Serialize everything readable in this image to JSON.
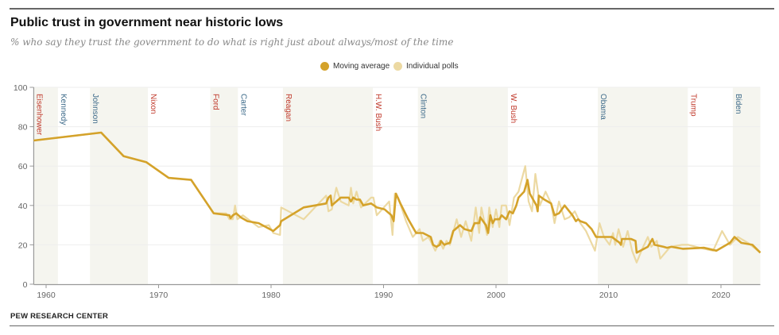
{
  "title": "Public trust in government near historic lows",
  "subtitle": "% who say they trust the government to do what is right just about always/most of the time",
  "source": "PEW RESEARCH CENTER",
  "colors": {
    "moving_average": "#d4a22a",
    "individual_polls": "#ecd9a2",
    "shade": "#f5f5ef",
    "republican": "#c0392b",
    "democrat": "#3e6b8a"
  },
  "chart_data": {
    "type": "line",
    "title": "Public trust in government near historic lows",
    "xlim": [
      1958.9,
      2023.5
    ],
    "ylim": [
      0,
      100
    ],
    "xticks": [
      1960,
      1970,
      1980,
      1990,
      2000,
      2010,
      2020
    ],
    "yticks": [
      0,
      20,
      40,
      60,
      80,
      100
    ],
    "grid": true,
    "legend": {
      "placement": "top-right",
      "entries": [
        "Moving average",
        "Individual polls"
      ]
    },
    "presidents": [
      {
        "name": "Eisenhower",
        "party": "R",
        "start": 1958.9,
        "end": 1961.05,
        "shaded": true
      },
      {
        "name": "Kennedy",
        "party": "D",
        "start": 1961.05,
        "end": 1963.9,
        "shaded": false
      },
      {
        "name": "Johnson",
        "party": "D",
        "start": 1963.9,
        "end": 1969.05,
        "shaded": true
      },
      {
        "name": "Nixon",
        "party": "R",
        "start": 1969.05,
        "end": 1974.6,
        "shaded": false
      },
      {
        "name": "Ford",
        "party": "R",
        "start": 1974.6,
        "end": 1977.05,
        "shaded": true
      },
      {
        "name": "Carter",
        "party": "D",
        "start": 1977.05,
        "end": 1981.05,
        "shaded": false
      },
      {
        "name": "Reagan",
        "party": "R",
        "start": 1981.05,
        "end": 1989.05,
        "shaded": true
      },
      {
        "name": "H.W. Bush",
        "party": "R",
        "start": 1989.05,
        "end": 1993.05,
        "shaded": false
      },
      {
        "name": "Clinton",
        "party": "D",
        "start": 1993.05,
        "end": 2001.05,
        "shaded": true
      },
      {
        "name": "W. Bush",
        "party": "R",
        "start": 2001.05,
        "end": 2009.05,
        "shaded": false
      },
      {
        "name": "Obama",
        "party": "D",
        "start": 2009.05,
        "end": 2017.05,
        "shaded": true
      },
      {
        "name": "Trump",
        "party": "R",
        "start": 2017.05,
        "end": 2021.05,
        "shaded": false
      },
      {
        "name": "Biden",
        "party": "D",
        "start": 2021.05,
        "end": 2023.5,
        "shaded": true
      }
    ],
    "series": [
      {
        "name": "Individual polls",
        "points": [
          [
            1958.9,
            73
          ],
          [
            1964.9,
            77
          ],
          [
            1966.9,
            65
          ],
          [
            1968.9,
            62
          ],
          [
            1970.9,
            54
          ],
          [
            1972.9,
            53
          ],
          [
            1974.9,
            36
          ],
          [
            1976.0,
            36
          ],
          [
            1976.3,
            33
          ],
          [
            1976.6,
            33
          ],
          [
            1976.8,
            40
          ],
          [
            1977.0,
            33
          ],
          [
            1977.5,
            35
          ],
          [
            1978.9,
            29
          ],
          [
            1979.8,
            30
          ],
          [
            1980.2,
            26
          ],
          [
            1980.8,
            25
          ],
          [
            1980.9,
            39
          ],
          [
            1982.9,
            33
          ],
          [
            1984.9,
            45
          ],
          [
            1985.1,
            37
          ],
          [
            1985.4,
            38
          ],
          [
            1985.8,
            49
          ],
          [
            1986.2,
            42
          ],
          [
            1986.9,
            40
          ],
          [
            1987.1,
            49
          ],
          [
            1987.3,
            41
          ],
          [
            1987.6,
            47
          ],
          [
            1988.0,
            39
          ],
          [
            1988.9,
            44
          ],
          [
            1989.1,
            44
          ],
          [
            1989.4,
            35
          ],
          [
            1990.5,
            42
          ],
          [
            1990.8,
            25
          ],
          [
            1991.0,
            46
          ],
          [
            1991.3,
            44
          ],
          [
            1992.0,
            32
          ],
          [
            1992.6,
            24
          ],
          [
            1993.2,
            28
          ],
          [
            1993.5,
            22
          ],
          [
            1994.0,
            24
          ],
          [
            1994.6,
            17
          ],
          [
            1995.0,
            22
          ],
          [
            1995.3,
            18
          ],
          [
            1995.6,
            22
          ],
          [
            1995.9,
            20
          ],
          [
            1996.5,
            33
          ],
          [
            1996.9,
            24
          ],
          [
            1997.3,
            32
          ],
          [
            1997.8,
            22
          ],
          [
            1998.2,
            39
          ],
          [
            1998.5,
            26
          ],
          [
            1998.7,
            39
          ],
          [
            1999.2,
            25
          ],
          [
            1999.4,
            39
          ],
          [
            1999.7,
            29
          ],
          [
            2000.0,
            38
          ],
          [
            2000.3,
            29
          ],
          [
            2000.5,
            40
          ],
          [
            2000.9,
            40
          ],
          [
            2001.2,
            30
          ],
          [
            2001.6,
            44
          ],
          [
            2002.0,
            47
          ],
          [
            2002.6,
            60
          ],
          [
            2002.9,
            42
          ],
          [
            2003.2,
            37
          ],
          [
            2003.5,
            56
          ],
          [
            2003.9,
            40
          ],
          [
            2004.4,
            47
          ],
          [
            2004.9,
            41
          ],
          [
            2005.2,
            31
          ],
          [
            2005.6,
            42
          ],
          [
            2006.1,
            33
          ],
          [
            2006.5,
            34
          ],
          [
            2007.0,
            37
          ],
          [
            2007.5,
            31
          ],
          [
            2008.0,
            27
          ],
          [
            2008.8,
            17
          ],
          [
            2009.2,
            31
          ],
          [
            2009.6,
            24
          ],
          [
            2010.1,
            20
          ],
          [
            2010.4,
            26
          ],
          [
            2010.6,
            20
          ],
          [
            2010.9,
            28
          ],
          [
            2011.3,
            19
          ],
          [
            2011.7,
            27
          ],
          [
            2012.1,
            17
          ],
          [
            2012.5,
            11
          ],
          [
            2013.0,
            18
          ],
          [
            2013.5,
            24
          ],
          [
            2013.8,
            19
          ],
          [
            2014.3,
            22
          ],
          [
            2014.6,
            13
          ],
          [
            2015.5,
            19
          ],
          [
            2016.5,
            20
          ],
          [
            2017.1,
            20
          ],
          [
            2018.5,
            18
          ],
          [
            2019.3,
            17
          ],
          [
            2020.1,
            27
          ],
          [
            2020.8,
            20
          ],
          [
            2021.5,
            24
          ],
          [
            2022.4,
            21
          ],
          [
            2023.5,
            16
          ]
        ]
      },
      {
        "name": "Moving average",
        "points": [
          [
            1958.9,
            73
          ],
          [
            1964.9,
            77
          ],
          [
            1966.9,
            65
          ],
          [
            1968.9,
            62
          ],
          [
            1970.9,
            54
          ],
          [
            1972.9,
            53
          ],
          [
            1974.9,
            36
          ],
          [
            1976.3,
            35
          ],
          [
            1976.4,
            33.5
          ],
          [
            1976.6,
            35
          ],
          [
            1976.9,
            36
          ],
          [
            1977.3,
            34
          ],
          [
            1977.9,
            32
          ],
          [
            1978.9,
            31
          ],
          [
            1980.2,
            27
          ],
          [
            1980.8,
            30
          ],
          [
            1980.9,
            32
          ],
          [
            1982.9,
            39
          ],
          [
            1984.9,
            41
          ],
          [
            1985.1,
            44
          ],
          [
            1985.3,
            45
          ],
          [
            1985.4,
            40
          ],
          [
            1986.2,
            44
          ],
          [
            1986.9,
            44
          ],
          [
            1987.1,
            42
          ],
          [
            1987.3,
            44
          ],
          [
            1987.6,
            43
          ],
          [
            1987.9,
            43
          ],
          [
            1988.2,
            40
          ],
          [
            1988.9,
            41
          ],
          [
            1989.4,
            39
          ],
          [
            1990.1,
            38
          ],
          [
            1990.7,
            35
          ],
          [
            1990.9,
            32
          ],
          [
            1991.1,
            46
          ],
          [
            1991.5,
            41
          ],
          [
            1992.2,
            33
          ],
          [
            1992.9,
            26
          ],
          [
            1993.5,
            26
          ],
          [
            1994.2,
            24
          ],
          [
            1994.4,
            20
          ],
          [
            1994.7,
            19
          ],
          [
            1995.0,
            20
          ],
          [
            1995.1,
            22
          ],
          [
            1995.4,
            20
          ],
          [
            1995.6,
            20.5
          ],
          [
            1995.9,
            21
          ],
          [
            1996.2,
            27
          ],
          [
            1996.8,
            30
          ],
          [
            1997.2,
            28
          ],
          [
            1997.8,
            27
          ],
          [
            1998.1,
            31
          ],
          [
            1998.5,
            31
          ],
          [
            1998.6,
            34
          ],
          [
            1999.1,
            30
          ],
          [
            1999.3,
            26
          ],
          [
            1999.5,
            35
          ],
          [
            1999.7,
            31
          ],
          [
            1999.9,
            33
          ],
          [
            2000.3,
            33
          ],
          [
            2000.5,
            35
          ],
          [
            2000.9,
            33
          ],
          [
            2001.2,
            37
          ],
          [
            2001.5,
            36
          ],
          [
            2001.8,
            40
          ],
          [
            2002.0,
            44
          ],
          [
            2002.5,
            47
          ],
          [
            2002.8,
            53
          ],
          [
            2003.0,
            46
          ],
          [
            2003.3,
            43
          ],
          [
            2003.6,
            40
          ],
          [
            2003.7,
            37
          ],
          [
            2003.8,
            45
          ],
          [
            2004.3,
            43
          ],
          [
            2004.9,
            41
          ],
          [
            2005.2,
            35
          ],
          [
            2005.6,
            36
          ],
          [
            2006.1,
            40
          ],
          [
            2006.8,
            35
          ],
          [
            2007.1,
            32
          ],
          [
            2007.3,
            33
          ],
          [
            2007.5,
            32
          ],
          [
            2008.0,
            31
          ],
          [
            2008.5,
            28
          ],
          [
            2008.9,
            24
          ],
          [
            2010.3,
            24
          ],
          [
            2011.0,
            21
          ],
          [
            2011.1,
            20
          ],
          [
            2011.2,
            23
          ],
          [
            2012.0,
            23
          ],
          [
            2012.4,
            22
          ],
          [
            2012.5,
            16
          ],
          [
            2013.5,
            19
          ],
          [
            2013.9,
            23
          ],
          [
            2014.1,
            20
          ],
          [
            2014.9,
            19
          ],
          [
            2015.2,
            18.5
          ],
          [
            2015.6,
            19
          ],
          [
            2016.6,
            18
          ],
          [
            2018.5,
            18.5
          ],
          [
            2019.6,
            17
          ],
          [
            2020.8,
            21
          ],
          [
            2021.2,
            24
          ],
          [
            2021.8,
            21
          ],
          [
            2022.8,
            20
          ],
          [
            2023.5,
            16
          ]
        ]
      }
    ]
  }
}
